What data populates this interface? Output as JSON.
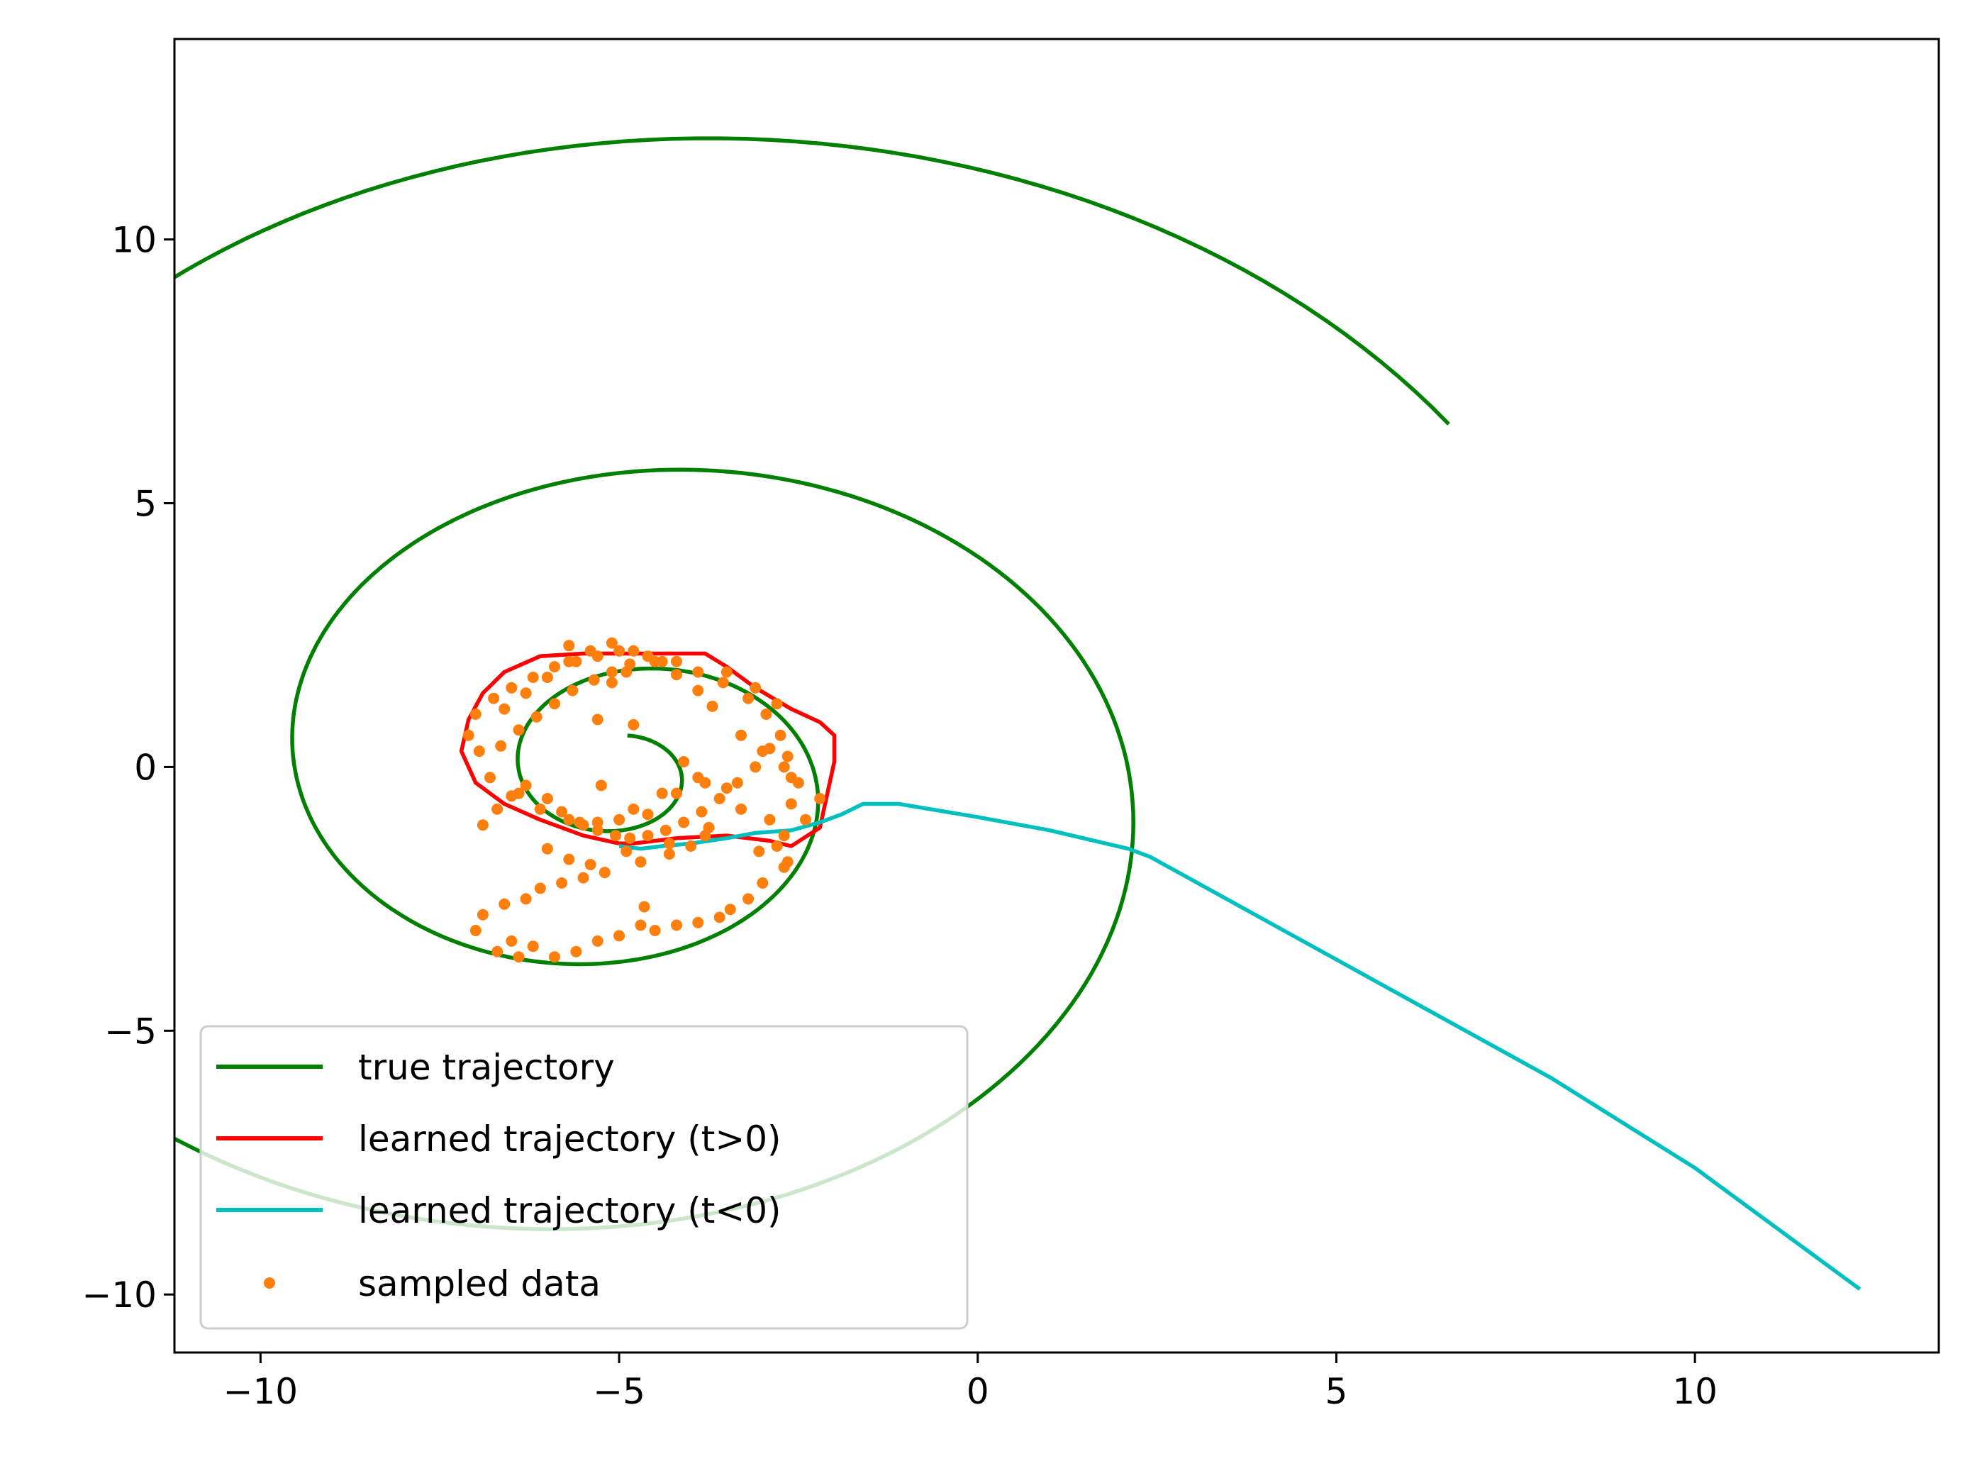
{
  "chart_data": {
    "type": "line",
    "title": "",
    "xlabel": "",
    "ylabel": "",
    "xlim": [
      -11.2,
      13.4
    ],
    "ylim": [
      -11.1,
      13.8
    ],
    "xticks": [
      -10,
      -5,
      0,
      5,
      10
    ],
    "yticks": [
      -10,
      -5,
      0,
      5,
      10
    ],
    "xtick_labels": [
      "−10",
      "−5",
      "0",
      "5",
      "10"
    ],
    "ytick_labels": [
      "−10",
      "−5",
      "0",
      "5",
      "10"
    ],
    "grid": false,
    "legend_position": "lower-left",
    "series": [
      {
        "name": "true trajectory",
        "kind": "line",
        "color": "#008000",
        "spiral": {
          "center": [
            -4.95,
            -0.15
          ],
          "r_start": 0.75,
          "r_end": 13.3,
          "theta_start_deg": 85,
          "theta_end_deg": -1050,
          "exponent": 2.0
        }
      },
      {
        "name": "learned trajectory (t>0)",
        "kind": "line",
        "color": "#ff0000",
        "x": [
          -5.0,
          -5.5,
          -6.1,
          -6.6,
          -7.0,
          -7.2,
          -7.1,
          -6.9,
          -6.6,
          -6.1,
          -5.5,
          -5.0,
          -4.3,
          -3.8,
          -3.5,
          -3.1,
          -2.6,
          -2.2,
          -2.0,
          -2.0,
          -2.2,
          -2.6,
          -2.9,
          -3.5,
          -4.2,
          -4.8,
          -5.0
        ],
        "y": [
          -1.45,
          -1.3,
          -1.0,
          -0.7,
          -0.3,
          0.3,
          0.9,
          1.4,
          1.8,
          2.1,
          2.15,
          2.15,
          2.15,
          2.15,
          1.9,
          1.5,
          1.1,
          0.85,
          0.6,
          0.1,
          -1.15,
          -1.5,
          -1.4,
          -1.3,
          -1.35,
          -1.45,
          -1.45
        ]
      },
      {
        "name": "learned trajectory (t<0)",
        "kind": "line",
        "color": "#00bfbf",
        "x": [
          -5.0,
          -4.7,
          -4.4,
          -4.0,
          -3.5,
          -3.1,
          -2.6,
          -2.2,
          -1.9,
          -1.6,
          -1.1,
          0.0,
          1.0,
          2.1,
          2.4,
          4.0,
          6.0,
          8.0,
          10.0,
          12.3
        ],
        "y": [
          -1.5,
          -1.55,
          -1.5,
          -1.45,
          -1.35,
          -1.25,
          -1.2,
          -1.05,
          -0.9,
          -0.7,
          -0.7,
          -0.95,
          -1.2,
          -1.55,
          -1.7,
          -2.9,
          -4.4,
          -5.9,
          -7.6,
          -9.9
        ]
      },
      {
        "name": "sampled data",
        "kind": "scatter",
        "color": "#ff7f0e",
        "x": [
          -4.6,
          -5.0,
          -5.5,
          -4.2,
          -3.8,
          -4.1,
          -4.8,
          -5.3,
          -5.1,
          -4.9,
          -4.4,
          -5.7,
          -3.5,
          -3.1,
          -2.8,
          -3.3,
          -3.0,
          -2.7,
          -2.5,
          -2.6,
          -2.9,
          -2.7,
          -2.2,
          -2.4,
          -2.8,
          -2.65,
          -3.0,
          -3.2,
          -3.45,
          -3.6,
          -3.9,
          -4.2,
          -4.5,
          -4.7,
          -5.0,
          -5.3,
          -5.6,
          -5.9,
          -6.2,
          -6.5,
          -6.4,
          -6.7,
          -7.0,
          -6.9,
          -6.6,
          -6.3,
          -6.1,
          -5.8,
          -5.5,
          -5.2,
          -4.7,
          -4.3,
          -4.0,
          -3.8,
          -3.3,
          -3.5,
          -3.9,
          -4.4,
          -4.8,
          -5.3,
          -5.7,
          -6.1,
          -6.4,
          -6.8,
          -6.95,
          -7.1,
          -7.0,
          -6.75,
          -6.5,
          -6.2,
          -5.9,
          -5.6,
          -5.3,
          -5.0,
          -4.6,
          -4.2,
          -3.9,
          -3.55,
          -3.2,
          -2.95,
          -2.75,
          -2.65,
          -2.6,
          -6.6,
          -6.3,
          -6.0,
          -5.7,
          -5.4,
          -5.1,
          -4.8,
          -4.5,
          -4.2,
          -3.9,
          -3.7,
          -6.9,
          -6.7,
          -6.5,
          -6.3,
          -6.0,
          -5.8,
          -5.55,
          -5.3,
          -5.05,
          -4.85,
          -4.6,
          -4.35,
          -4.1,
          -3.85,
          -3.6,
          -3.35,
          -3.1,
          -2.9,
          -6.65,
          -6.4,
          -6.15,
          -5.9,
          -5.65,
          -5.35,
          -5.1,
          -4.85,
          -6.0,
          -5.7,
          -5.4,
          -4.9,
          -4.3,
          -3.75,
          -3.05,
          -2.7,
          -5.25,
          -4.65
        ],
        "y": [
          -0.9,
          -1.0,
          -1.1,
          -0.5,
          -0.3,
          0.1,
          0.8,
          0.9,
          1.6,
          1.8,
          2.0,
          2.3,
          1.8,
          1.5,
          1.2,
          0.6,
          0.3,
          0.0,
          -0.3,
          -0.7,
          -1.0,
          -1.3,
          -0.6,
          -1.0,
          -1.5,
          -1.8,
          -2.2,
          -2.5,
          -2.7,
          -2.85,
          -2.95,
          -3.0,
          -3.1,
          -3.0,
          -3.2,
          -3.3,
          -3.5,
          -3.6,
          -3.4,
          -3.3,
          -3.6,
          -3.5,
          -3.1,
          -2.8,
          -2.6,
          -2.5,
          -2.3,
          -2.2,
          -2.1,
          -2.0,
          -1.8,
          -1.65,
          -1.5,
          -1.3,
          -0.8,
          -0.4,
          -0.2,
          -0.5,
          -0.8,
          -1.05,
          -1.0,
          -0.8,
          -0.5,
          -0.2,
          0.3,
          0.6,
          1.0,
          1.3,
          1.5,
          1.7,
          1.9,
          2.0,
          2.1,
          2.2,
          2.1,
          2.0,
          1.8,
          1.6,
          1.3,
          1.0,
          0.6,
          0.2,
          -0.2,
          1.1,
          1.4,
          1.7,
          2.0,
          2.2,
          2.35,
          2.2,
          2.0,
          1.75,
          1.45,
          1.15,
          -1.1,
          -0.8,
          -0.55,
          -0.35,
          -0.6,
          -0.85,
          -1.05,
          -1.2,
          -1.3,
          -1.35,
          -1.3,
          -1.2,
          -1.05,
          -0.85,
          -0.6,
          -0.3,
          0.0,
          0.35,
          0.4,
          0.7,
          0.95,
          1.2,
          1.45,
          1.65,
          1.8,
          1.95,
          -1.55,
          -1.75,
          -1.85,
          -1.6,
          -1.45,
          -1.15,
          -1.6,
          -1.9,
          -0.35,
          -2.65
        ]
      }
    ]
  }
}
